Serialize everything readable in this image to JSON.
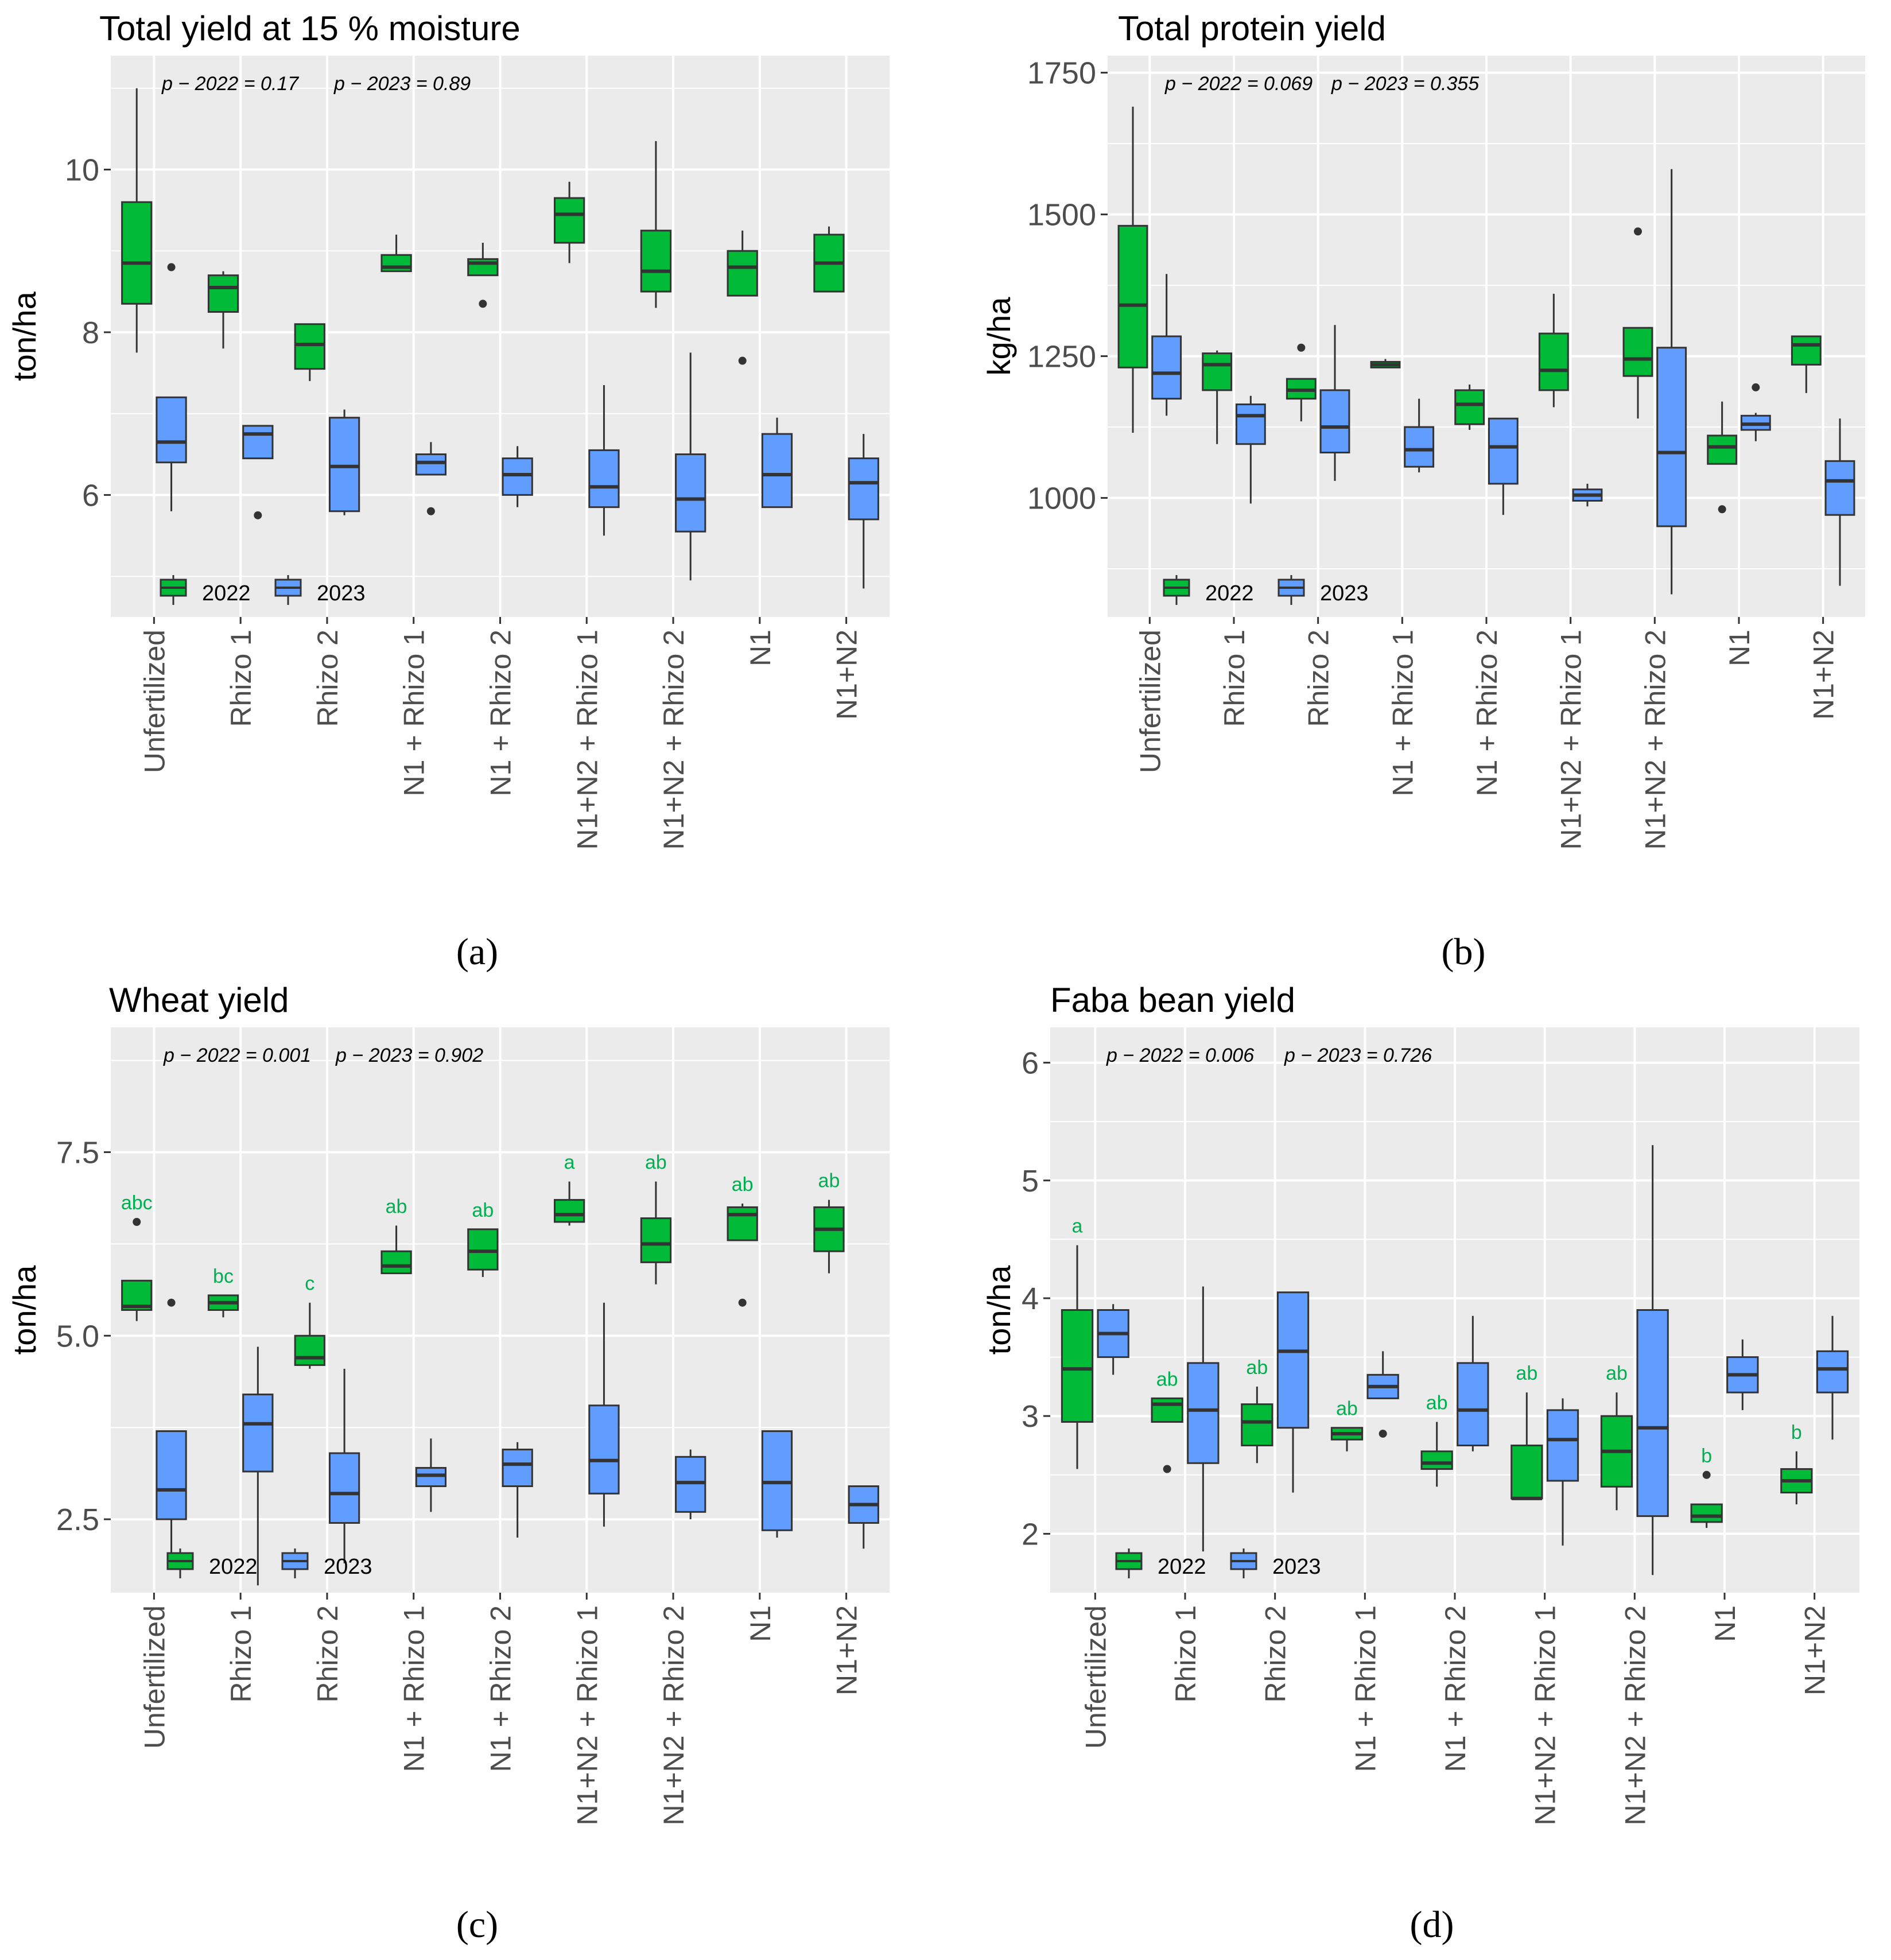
{
  "chart_data": [
    {
      "type": "box",
      "panel": "(a)",
      "title": "Total yield at 15 % moisture",
      "ylabel": "ton/ha",
      "xlabel": "",
      "ylim": [
        4.5,
        11.4
      ],
      "yticks": [
        6,
        8,
        10
      ],
      "ytick_labels": [
        "6",
        "8",
        "10"
      ],
      "categories": [
        "Unfertilized",
        "Rhizo 1",
        "Rhizo 2",
        "N1 + Rhizo 1",
        "N1 + Rhizo 2",
        "N1+N2 + Rhizo 1",
        "N1+N2 + Rhizo 2",
        "N1",
        "N1+N2"
      ],
      "pvalues": [
        "p − 2022 = 0.17",
        "p − 2023 = 0.89"
      ],
      "legend": [
        "2022",
        "2023"
      ],
      "series": [
        {
          "name": "2022",
          "color": "#00BA38",
          "boxes": [
            {
              "min": 7.75,
              "q1": 8.35,
              "median": 8.85,
              "q3": 9.6,
              "max": 11.0,
              "outliers": []
            },
            {
              "min": 7.8,
              "q1": 8.25,
              "median": 8.55,
              "q3": 8.7,
              "max": 8.75,
              "outliers": []
            },
            {
              "min": 7.4,
              "q1": 7.55,
              "median": 7.85,
              "q3": 8.1,
              "max": 8.1,
              "outliers": []
            },
            {
              "min": 8.75,
              "q1": 8.75,
              "median": 8.8,
              "q3": 8.95,
              "max": 9.2,
              "outliers": []
            },
            {
              "min": 8.7,
              "q1": 8.7,
              "median": 8.85,
              "q3": 8.9,
              "max": 9.1,
              "outliers": [
                8.35
              ]
            },
            {
              "min": 8.85,
              "q1": 9.1,
              "median": 9.45,
              "q3": 9.65,
              "max": 9.85,
              "outliers": []
            },
            {
              "min": 8.3,
              "q1": 8.5,
              "median": 8.75,
              "q3": 9.25,
              "max": 10.35,
              "outliers": []
            },
            {
              "min": 8.45,
              "q1": 8.45,
              "median": 8.8,
              "q3": 9.0,
              "max": 9.25,
              "outliers": [
                7.65
              ]
            },
            {
              "min": 8.5,
              "q1": 8.5,
              "median": 8.85,
              "q3": 9.2,
              "max": 9.3,
              "outliers": []
            }
          ]
        },
        {
          "name": "2023",
          "color": "#619CFF",
          "boxes": [
            {
              "min": 5.8,
              "q1": 6.4,
              "median": 6.65,
              "q3": 7.2,
              "max": 7.2,
              "outliers": [
                8.8
              ]
            },
            {
              "min": 6.45,
              "q1": 6.45,
              "median": 6.75,
              "q3": 6.85,
              "max": 6.85,
              "outliers": [
                5.75
              ]
            },
            {
              "min": 5.75,
              "q1": 5.8,
              "median": 6.35,
              "q3": 6.95,
              "max": 7.05,
              "outliers": []
            },
            {
              "min": 6.25,
              "q1": 6.25,
              "median": 6.4,
              "q3": 6.5,
              "max": 6.65,
              "outliers": [
                5.8
              ]
            },
            {
              "min": 5.85,
              "q1": 6.0,
              "median": 6.25,
              "q3": 6.45,
              "max": 6.6,
              "outliers": []
            },
            {
              "min": 5.5,
              "q1": 5.85,
              "median": 6.1,
              "q3": 6.55,
              "max": 7.35,
              "outliers": []
            },
            {
              "min": 4.95,
              "q1": 5.55,
              "median": 5.95,
              "q3": 6.5,
              "max": 7.75,
              "outliers": []
            },
            {
              "min": 5.85,
              "q1": 5.85,
              "median": 6.25,
              "q3": 6.75,
              "max": 6.95,
              "outliers": []
            },
            {
              "min": 4.85,
              "q1": 5.7,
              "median": 6.15,
              "q3": 6.45,
              "max": 6.75,
              "outliers": []
            }
          ]
        }
      ]
    },
    {
      "type": "box",
      "panel": "(b)",
      "title": "Total protein yield",
      "ylabel": "kg/ha",
      "xlabel": "",
      "ylim": [
        790,
        1780
      ],
      "yticks": [
        1000,
        1250,
        1500,
        1750
      ],
      "ytick_labels": [
        "1000",
        "1250",
        "1500",
        "1750"
      ],
      "categories": [
        "Unfertilized",
        "Rhizo 1",
        "Rhizo 2",
        "N1 + Rhizo 1",
        "N1 + Rhizo 2",
        "N1+N2 + Rhizo 1",
        "N1+N2 + Rhizo 2",
        "N1",
        "N1+N2"
      ],
      "pvalues": [
        "p − 2022 = 0.069",
        "p − 2023 = 0.355"
      ],
      "legend": [
        "2022",
        "2023"
      ],
      "series": [
        {
          "name": "2022",
          "color": "#00BA38",
          "boxes": [
            {
              "min": 1115,
              "q1": 1230,
              "median": 1340,
              "q3": 1480,
              "max": 1690,
              "outliers": []
            },
            {
              "min": 1095,
              "q1": 1190,
              "median": 1235,
              "q3": 1255,
              "max": 1260,
              "outliers": []
            },
            {
              "min": 1135,
              "q1": 1175,
              "median": 1190,
              "q3": 1210,
              "max": 1210,
              "outliers": [
                1265
              ]
            },
            {
              "min": 1230,
              "q1": 1230,
              "median": 1235,
              "q3": 1240,
              "max": 1245,
              "outliers": []
            },
            {
              "min": 1120,
              "q1": 1130,
              "median": 1165,
              "q3": 1190,
              "max": 1200,
              "outliers": []
            },
            {
              "min": 1160,
              "q1": 1190,
              "median": 1225,
              "q3": 1290,
              "max": 1360,
              "outliers": []
            },
            {
              "min": 1140,
              "q1": 1215,
              "median": 1245,
              "q3": 1300,
              "max": 1300,
              "outliers": [
                1470
              ]
            },
            {
              "min": 1060,
              "q1": 1060,
              "median": 1090,
              "q3": 1110,
              "max": 1170,
              "outliers": [
                980
              ]
            },
            {
              "min": 1185,
              "q1": 1235,
              "median": 1270,
              "q3": 1285,
              "max": 1285,
              "outliers": []
            }
          ]
        },
        {
          "name": "2023",
          "color": "#619CFF",
          "boxes": [
            {
              "min": 1145,
              "q1": 1175,
              "median": 1220,
              "q3": 1285,
              "max": 1395,
              "outliers": []
            },
            {
              "min": 990,
              "q1": 1095,
              "median": 1145,
              "q3": 1165,
              "max": 1180,
              "outliers": []
            },
            {
              "min": 1030,
              "q1": 1080,
              "median": 1125,
              "q3": 1190,
              "max": 1305,
              "outliers": []
            },
            {
              "min": 1045,
              "q1": 1055,
              "median": 1085,
              "q3": 1125,
              "max": 1175,
              "outliers": []
            },
            {
              "min": 970,
              "q1": 1025,
              "median": 1090,
              "q3": 1140,
              "max": 1140,
              "outliers": []
            },
            {
              "min": 985,
              "q1": 995,
              "median": 1005,
              "q3": 1015,
              "max": 1025,
              "outliers": []
            },
            {
              "min": 830,
              "q1": 950,
              "median": 1080,
              "q3": 1265,
              "max": 1580,
              "outliers": []
            },
            {
              "min": 1100,
              "q1": 1120,
              "median": 1130,
              "q3": 1145,
              "max": 1150,
              "outliers": [
                1195
              ]
            },
            {
              "min": 845,
              "q1": 970,
              "median": 1030,
              "q3": 1065,
              "max": 1140,
              "outliers": []
            }
          ]
        }
      ]
    },
    {
      "type": "box",
      "panel": "(c)",
      "title": "Wheat yield",
      "ylabel": "ton/ha",
      "xlabel": "",
      "ylim": [
        1.5,
        9.2
      ],
      "yticks": [
        2.5,
        5.0,
        7.5
      ],
      "ytick_labels": [
        "2.5",
        "5.0",
        "7.5"
      ],
      "categories": [
        "Unfertilized",
        "Rhizo 1",
        "Rhizo 2",
        "N1 + Rhizo 1",
        "N1 + Rhizo 2",
        "N1+N2 + Rhizo 1",
        "N1+N2 + Rhizo 2",
        "N1",
        "N1+N2"
      ],
      "pvalues": [
        "p − 2022 = 0.001",
        "p − 2023 = 0.902"
      ],
      "legend": [
        "2022",
        "2023"
      ],
      "significance_letters": [
        "abc",
        "bc",
        "c",
        "ab",
        "ab",
        "a",
        "ab",
        "ab",
        "ab"
      ],
      "series": [
        {
          "name": "2022",
          "color": "#00BA38",
          "boxes": [
            {
              "min": 5.2,
              "q1": 5.35,
              "median": 5.4,
              "q3": 5.75,
              "max": 5.75,
              "outliers": [
                6.55
              ]
            },
            {
              "min": 5.25,
              "q1": 5.35,
              "median": 5.45,
              "q3": 5.55,
              "max": 5.55,
              "outliers": []
            },
            {
              "min": 4.55,
              "q1": 4.6,
              "median": 4.7,
              "q3": 5.0,
              "max": 5.45,
              "outliers": []
            },
            {
              "min": 5.85,
              "q1": 5.85,
              "median": 5.95,
              "q3": 6.15,
              "max": 6.5,
              "outliers": []
            },
            {
              "min": 5.8,
              "q1": 5.9,
              "median": 6.15,
              "q3": 6.45,
              "max": 6.45,
              "outliers": []
            },
            {
              "min": 6.5,
              "q1": 6.55,
              "median": 6.65,
              "q3": 6.85,
              "max": 7.1,
              "outliers": []
            },
            {
              "min": 5.7,
              "q1": 6.0,
              "median": 6.25,
              "q3": 6.6,
              "max": 7.1,
              "outliers": []
            },
            {
              "min": 6.3,
              "q1": 6.3,
              "median": 6.65,
              "q3": 6.75,
              "max": 6.8,
              "outliers": [
                5.45
              ]
            },
            {
              "min": 5.85,
              "q1": 6.15,
              "median": 6.45,
              "q3": 6.75,
              "max": 6.85,
              "outliers": []
            }
          ]
        },
        {
          "name": "2023",
          "color": "#619CFF",
          "boxes": [
            {
              "min": 1.9,
              "q1": 2.5,
              "median": 2.9,
              "q3": 3.7,
              "max": 3.7,
              "outliers": [
                5.45
              ]
            },
            {
              "min": 1.6,
              "q1": 3.15,
              "median": 3.8,
              "q3": 4.2,
              "max": 4.85,
              "outliers": []
            },
            {
              "min": 1.9,
              "q1": 2.45,
              "median": 2.85,
              "q3": 3.4,
              "max": 4.55,
              "outliers": []
            },
            {
              "min": 2.6,
              "q1": 2.95,
              "median": 3.1,
              "q3": 3.2,
              "max": 3.6,
              "outliers": []
            },
            {
              "min": 2.25,
              "q1": 2.95,
              "median": 3.25,
              "q3": 3.45,
              "max": 3.55,
              "outliers": []
            },
            {
              "min": 2.4,
              "q1": 2.85,
              "median": 3.3,
              "q3": 4.05,
              "max": 5.45,
              "outliers": []
            },
            {
              "min": 2.5,
              "q1": 2.6,
              "median": 3.0,
              "q3": 3.35,
              "max": 3.45,
              "outliers": []
            },
            {
              "min": 2.25,
              "q1": 2.35,
              "median": 3.0,
              "q3": 3.7,
              "max": 3.7,
              "outliers": []
            },
            {
              "min": 2.1,
              "q1": 2.45,
              "median": 2.7,
              "q3": 2.95,
              "max": 2.95,
              "outliers": []
            }
          ]
        }
      ]
    },
    {
      "type": "box",
      "panel": "(d)",
      "title": "Faba bean yield",
      "ylabel": "ton/ha",
      "xlabel": "",
      "ylim": [
        1.5,
        6.3
      ],
      "yticks": [
        2,
        3,
        4,
        5,
        6
      ],
      "ytick_labels": [
        "2",
        "3",
        "4",
        "5",
        "6"
      ],
      "categories": [
        "Unfertilized",
        "Rhizo 1",
        "Rhizo 2",
        "N1 + Rhizo 1",
        "N1 + Rhizo 2",
        "N1+N2 + Rhizo 1",
        "N1+N2 + Rhizo 2",
        "N1",
        "N1+N2"
      ],
      "pvalues": [
        "p − 2022 = 0.006",
        "p − 2023 = 0.726"
      ],
      "legend": [
        "2022",
        "2023"
      ],
      "significance_letters": [
        "a",
        "ab",
        "ab",
        "ab",
        "ab",
        "ab",
        "ab",
        "b",
        "b"
      ],
      "series": [
        {
          "name": "2022",
          "color": "#00BA38",
          "boxes": [
            {
              "min": 2.55,
              "q1": 2.95,
              "median": 3.4,
              "q3": 3.9,
              "max": 4.45,
              "outliers": []
            },
            {
              "min": 2.95,
              "q1": 2.95,
              "median": 3.1,
              "q3": 3.15,
              "max": 3.15,
              "outliers": [
                2.55
              ]
            },
            {
              "min": 2.6,
              "q1": 2.75,
              "median": 2.95,
              "q3": 3.1,
              "max": 3.25,
              "outliers": []
            },
            {
              "min": 2.7,
              "q1": 2.8,
              "median": 2.85,
              "q3": 2.9,
              "max": 2.9,
              "outliers": []
            },
            {
              "min": 2.4,
              "q1": 2.55,
              "median": 2.6,
              "q3": 2.7,
              "max": 2.95,
              "outliers": []
            },
            {
              "min": 2.3,
              "q1": 2.3,
              "median": 2.3,
              "q3": 2.75,
              "max": 3.2,
              "outliers": []
            },
            {
              "min": 2.2,
              "q1": 2.4,
              "median": 2.7,
              "q3": 3.0,
              "max": 3.2,
              "outliers": []
            },
            {
              "min": 2.05,
              "q1": 2.1,
              "median": 2.15,
              "q3": 2.25,
              "max": 2.25,
              "outliers": [
                2.5
              ]
            },
            {
              "min": 2.25,
              "q1": 2.35,
              "median": 2.45,
              "q3": 2.55,
              "max": 2.7,
              "outliers": []
            }
          ]
        },
        {
          "name": "2023",
          "color": "#619CFF",
          "boxes": [
            {
              "min": 3.35,
              "q1": 3.5,
              "median": 3.7,
              "q3": 3.9,
              "max": 3.95,
              "outliers": []
            },
            {
              "min": 1.85,
              "q1": 2.6,
              "median": 3.05,
              "q3": 3.45,
              "max": 4.1,
              "outliers": []
            },
            {
              "min": 2.35,
              "q1": 2.9,
              "median": 3.55,
              "q3": 4.05,
              "max": 4.05,
              "outliers": []
            },
            {
              "min": 3.15,
              "q1": 3.15,
              "median": 3.25,
              "q3": 3.35,
              "max": 3.55,
              "outliers": [
                2.85
              ]
            },
            {
              "min": 2.7,
              "q1": 2.75,
              "median": 3.05,
              "q3": 3.45,
              "max": 3.85,
              "outliers": []
            },
            {
              "min": 1.9,
              "q1": 2.45,
              "median": 2.8,
              "q3": 3.05,
              "max": 3.15,
              "outliers": []
            },
            {
              "min": 1.65,
              "q1": 2.15,
              "median": 2.9,
              "q3": 3.9,
              "max": 5.3,
              "outliers": []
            },
            {
              "min": 3.05,
              "q1": 3.2,
              "median": 3.35,
              "q3": 3.5,
              "max": 3.65,
              "outliers": []
            },
            {
              "min": 2.8,
              "q1": 3.2,
              "median": 3.4,
              "q3": 3.55,
              "max": 3.85,
              "outliers": []
            }
          ]
        }
      ]
    }
  ]
}
